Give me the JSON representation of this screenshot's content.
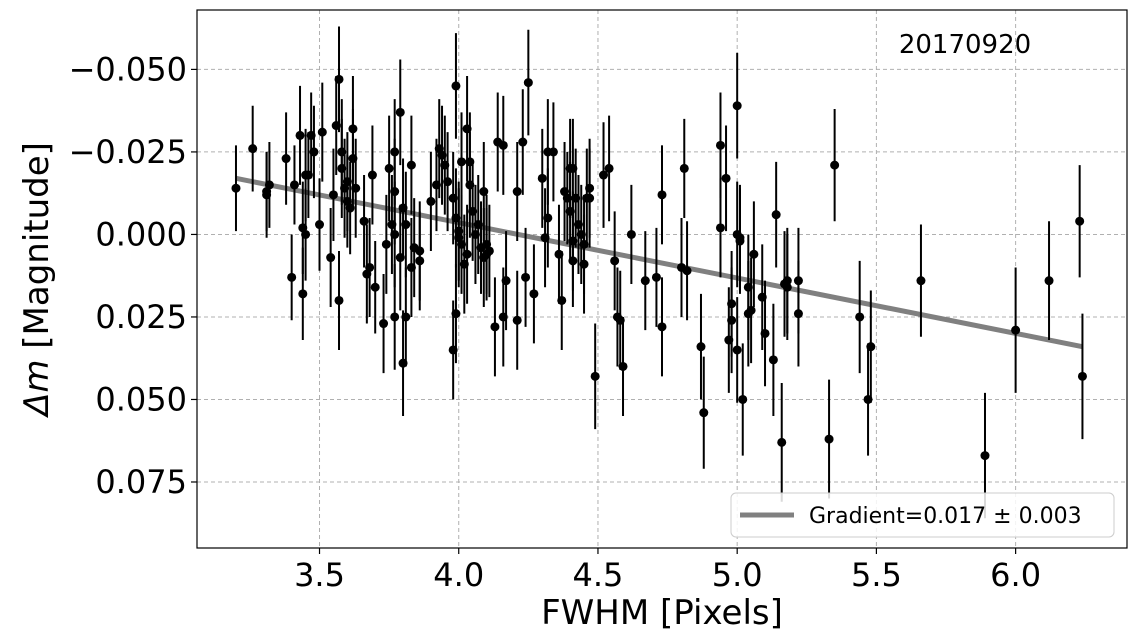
{
  "chart_data": {
    "type": "scatter",
    "title": "",
    "xlabel": "FWHM [Pixels]",
    "ylabel_italic": "Δm",
    "ylabel_rest": " [Magnitude]",
    "xlim": [
      3.06,
      6.4
    ],
    "ylim": [
      0.095,
      -0.068
    ],
    "y_inverted": true,
    "grid": true,
    "xticks": [
      3.5,
      4.0,
      4.5,
      5.0,
      5.5,
      6.0
    ],
    "xtick_labels": [
      "3.5",
      "4.0",
      "4.5",
      "5.0",
      "5.5",
      "6.0"
    ],
    "yticks": [
      -0.05,
      -0.025,
      0.0,
      0.025,
      0.05,
      0.075
    ],
    "ytick_labels": [
      "−0.050",
      "−0.025",
      "0.000",
      "0.025",
      "0.050",
      "0.075"
    ],
    "annotation": "20170920",
    "legend": {
      "position": "lower-right",
      "label": "Gradient=0.017 ± 0.003"
    },
    "fit_line": {
      "color": "#808080",
      "x": [
        3.2,
        6.24
      ],
      "y": [
        -0.017,
        0.034
      ]
    },
    "points": [
      [
        3.2,
        -0.014,
        0.013
      ],
      [
        3.26,
        -0.026,
        0.013
      ],
      [
        3.31,
        -0.012,
        0.013
      ],
      [
        3.31,
        -0.013,
        0.012
      ],
      [
        3.32,
        -0.015,
        0.013
      ],
      [
        3.38,
        -0.023,
        0.014
      ],
      [
        3.4,
        0.013,
        0.013
      ],
      [
        3.41,
        -0.015,
        0.012
      ],
      [
        3.43,
        -0.03,
        0.015
      ],
      [
        3.44,
        -0.002,
        0.014
      ],
      [
        3.44,
        0.018,
        0.014
      ],
      [
        3.45,
        0.0,
        0.014
      ],
      [
        3.45,
        -0.018,
        0.014
      ],
      [
        3.46,
        -0.018,
        0.013
      ],
      [
        3.47,
        -0.03,
        0.013
      ],
      [
        3.48,
        -0.025,
        0.014
      ],
      [
        3.5,
        -0.003,
        0.014
      ],
      [
        3.51,
        -0.031,
        0.015
      ],
      [
        3.54,
        0.007,
        0.015
      ],
      [
        3.55,
        -0.012,
        0.014
      ],
      [
        3.56,
        -0.033,
        0.015
      ],
      [
        3.57,
        -0.047,
        0.016
      ],
      [
        3.57,
        0.02,
        0.015
      ],
      [
        3.58,
        -0.025,
        0.016
      ],
      [
        3.58,
        -0.02,
        0.015
      ],
      [
        3.59,
        -0.014,
        0.015
      ],
      [
        3.6,
        -0.01,
        0.014
      ],
      [
        3.6,
        -0.016,
        0.015
      ],
      [
        3.61,
        -0.008,
        0.014
      ],
      [
        3.62,
        -0.023,
        0.015
      ],
      [
        3.62,
        -0.032,
        0.016
      ],
      [
        3.63,
        -0.014,
        0.015
      ],
      [
        3.66,
        -0.004,
        0.014
      ],
      [
        3.67,
        0.012,
        0.015
      ],
      [
        3.68,
        0.01,
        0.015
      ],
      [
        3.69,
        -0.018,
        0.015
      ],
      [
        3.7,
        0.016,
        0.014
      ],
      [
        3.73,
        0.027,
        0.015
      ],
      [
        3.74,
        0.003,
        0.015
      ],
      [
        3.75,
        -0.02,
        0.016
      ],
      [
        3.76,
        -0.003,
        0.015
      ],
      [
        3.77,
        0.0,
        0.016
      ],
      [
        3.77,
        -0.025,
        0.016
      ],
      [
        3.77,
        -0.013,
        0.016
      ],
      [
        3.77,
        0.025,
        0.016
      ],
      [
        3.79,
        -0.037,
        0.016
      ],
      [
        3.79,
        0.007,
        0.016
      ],
      [
        3.8,
        -0.008,
        0.015
      ],
      [
        3.8,
        0.039,
        0.016
      ],
      [
        3.81,
        -0.003,
        0.016
      ],
      [
        3.81,
        0.025,
        0.015
      ],
      [
        3.83,
        -0.021,
        0.015
      ],
      [
        3.83,
        0.01,
        0.015
      ],
      [
        3.84,
        0.004,
        0.015
      ],
      [
        3.86,
        0.005,
        0.015
      ],
      [
        3.86,
        0.008,
        0.015
      ],
      [
        3.9,
        -0.01,
        0.015
      ],
      [
        3.92,
        -0.015,
        0.014
      ],
      [
        3.93,
        -0.026,
        0.015
      ],
      [
        3.94,
        -0.024,
        0.015
      ],
      [
        3.95,
        -0.021,
        0.015
      ],
      [
        3.96,
        -0.016,
        0.015
      ],
      [
        3.98,
        -0.011,
        0.014
      ],
      [
        3.98,
        0.035,
        0.015
      ],
      [
        3.99,
        -0.045,
        0.016
      ],
      [
        3.99,
        -0.005,
        0.015
      ],
      [
        3.99,
        0.024,
        0.015
      ],
      [
        4.0,
        0.001,
        0.015
      ],
      [
        4.0,
        -0.001,
        0.015
      ],
      [
        4.01,
        0.003,
        0.015
      ],
      [
        4.01,
        -0.022,
        0.015
      ],
      [
        4.02,
        0.009,
        0.015
      ],
      [
        4.03,
        -0.032,
        0.016
      ],
      [
        4.03,
        0.006,
        0.015
      ],
      [
        4.04,
        -0.015,
        0.016
      ],
      [
        4.04,
        -0.022,
        0.015
      ],
      [
        4.05,
        -0.007,
        0.015
      ],
      [
        4.06,
        0.0,
        0.015
      ],
      [
        4.07,
        -0.003,
        0.015
      ],
      [
        4.08,
        0.004,
        0.014
      ],
      [
        4.09,
        -0.013,
        0.015
      ],
      [
        4.09,
        0.007,
        0.015
      ],
      [
        4.1,
        0.003,
        0.015
      ],
      [
        4.1,
        0.006,
        0.014
      ],
      [
        4.11,
        0.005,
        0.014
      ],
      [
        4.13,
        0.028,
        0.015
      ],
      [
        4.14,
        -0.028,
        0.015
      ],
      [
        4.16,
        0.025,
        0.015
      ],
      [
        4.16,
        -0.027,
        0.015
      ],
      [
        4.17,
        0.014,
        0.015
      ],
      [
        4.21,
        0.026,
        0.015
      ],
      [
        4.21,
        -0.013,
        0.015
      ],
      [
        4.23,
        -0.028,
        0.016
      ],
      [
        4.24,
        0.013,
        0.015
      ],
      [
        4.25,
        -0.046,
        0.016
      ],
      [
        4.27,
        0.018,
        0.015
      ],
      [
        4.3,
        -0.017,
        0.015
      ],
      [
        4.31,
        0.001,
        0.015
      ],
      [
        4.32,
        -0.005,
        0.015
      ],
      [
        4.32,
        -0.025,
        0.016
      ],
      [
        4.34,
        -0.025,
        0.015
      ],
      [
        4.36,
        0.006,
        0.015
      ],
      [
        4.37,
        0.02,
        0.015
      ],
      [
        4.38,
        -0.013,
        0.015
      ],
      [
        4.39,
        -0.011,
        0.014
      ],
      [
        4.4,
        -0.02,
        0.015
      ],
      [
        4.4,
        -0.007,
        0.015
      ],
      [
        4.41,
        0.002,
        0.015
      ],
      [
        4.41,
        0.008,
        0.014
      ],
      [
        4.41,
        -0.02,
        0.015
      ],
      [
        4.42,
        -0.011,
        0.015
      ],
      [
        4.43,
        -0.003,
        0.015
      ],
      [
        4.44,
        0.0,
        0.015
      ],
      [
        4.45,
        0.003,
        0.015
      ],
      [
        4.45,
        0.009,
        0.015
      ],
      [
        4.46,
        -0.011,
        0.015
      ],
      [
        4.47,
        -0.014,
        0.015
      ],
      [
        4.47,
        -0.011,
        0.015
      ],
      [
        4.49,
        0.043,
        0.016
      ],
      [
        4.52,
        -0.018,
        0.016
      ],
      [
        4.54,
        -0.02,
        0.016
      ],
      [
        4.56,
        0.008,
        0.015
      ],
      [
        4.57,
        0.025,
        0.015
      ],
      [
        4.58,
        0.026,
        0.015
      ],
      [
        4.59,
        0.04,
        0.015
      ],
      [
        4.62,
        0.0,
        0.015
      ],
      [
        4.67,
        0.014,
        0.015
      ],
      [
        4.71,
        0.013,
        0.015
      ],
      [
        4.73,
        -0.012,
        0.015
      ],
      [
        4.73,
        0.028,
        0.015
      ],
      [
        4.8,
        0.01,
        0.015
      ],
      [
        4.81,
        -0.02,
        0.015
      ],
      [
        4.82,
        0.011,
        0.015
      ],
      [
        4.87,
        0.034,
        0.016
      ],
      [
        4.88,
        0.054,
        0.017
      ],
      [
        4.94,
        -0.027,
        0.016
      ],
      [
        4.94,
        -0.002,
        0.015
      ],
      [
        4.96,
        -0.017,
        0.016
      ],
      [
        4.97,
        0.032,
        0.016
      ],
      [
        4.98,
        0.021,
        0.016
      ],
      [
        4.98,
        0.026,
        0.016
      ],
      [
        5.0,
        -0.039,
        0.016
      ],
      [
        5.0,
        0.0,
        0.016
      ],
      [
        5.0,
        0.035,
        0.016
      ],
      [
        5.01,
        0.001,
        0.016
      ],
      [
        5.01,
        0.002,
        0.016
      ],
      [
        5.02,
        0.05,
        0.017
      ],
      [
        5.04,
        0.016,
        0.016
      ],
      [
        5.04,
        0.024,
        0.016
      ],
      [
        5.05,
        0.023,
        0.016
      ],
      [
        5.06,
        0.006,
        0.016
      ],
      [
        5.09,
        0.019,
        0.016
      ],
      [
        5.1,
        0.03,
        0.016
      ],
      [
        5.13,
        0.038,
        0.017
      ],
      [
        5.14,
        -0.006,
        0.016
      ],
      [
        5.16,
        0.063,
        0.018
      ],
      [
        5.17,
        0.015,
        0.016
      ],
      [
        5.18,
        0.014,
        0.016
      ],
      [
        5.18,
        0.016,
        0.016
      ],
      [
        5.22,
        0.014,
        0.016
      ],
      [
        5.22,
        0.024,
        0.016
      ],
      [
        5.33,
        0.062,
        0.018
      ],
      [
        5.35,
        -0.021,
        0.017
      ],
      [
        5.44,
        0.025,
        0.017
      ],
      [
        5.47,
        0.05,
        0.017
      ],
      [
        5.48,
        0.034,
        0.017
      ],
      [
        5.66,
        0.014,
        0.017
      ],
      [
        5.89,
        0.067,
        0.019
      ],
      [
        6.0,
        0.029,
        0.019
      ],
      [
        6.12,
        0.014,
        0.018
      ],
      [
        6.23,
        -0.004,
        0.017
      ],
      [
        6.24,
        0.043,
        0.019
      ]
    ]
  }
}
